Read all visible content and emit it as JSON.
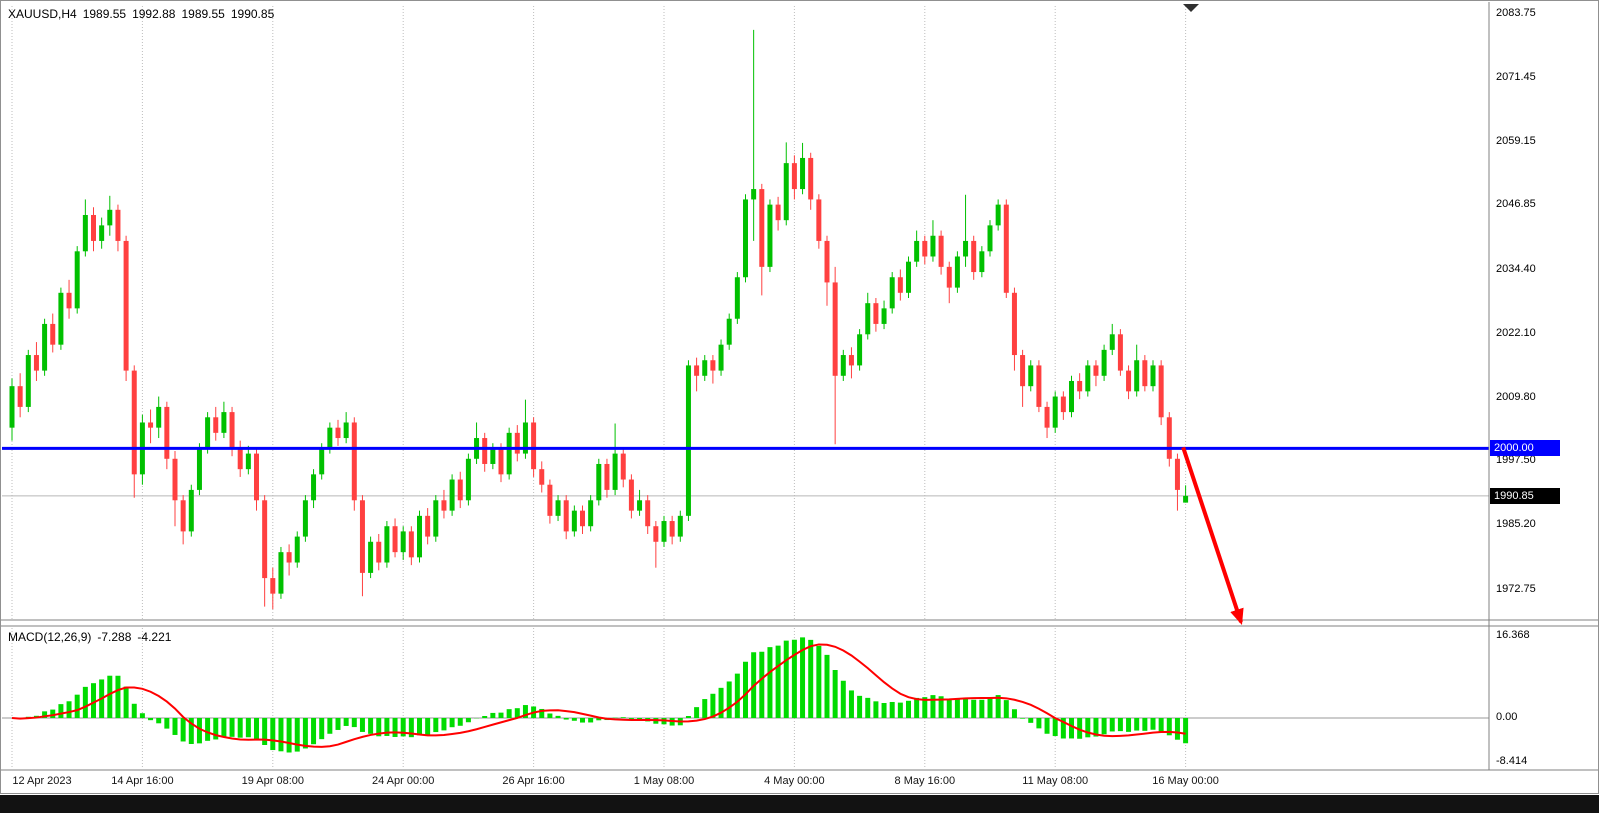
{
  "header": {
    "symbol_timeframe": "XAUUSD,H4",
    "open": "1989.55",
    "high": "1992.88",
    "low": "1989.55",
    "close": "1990.85"
  },
  "price_axis": {
    "labels": [
      "2083.75",
      "2071.45",
      "2059.15",
      "2046.85",
      "2034.40",
      "2022.10",
      "2009.80",
      "1997.50",
      "1985.20",
      "1972.75"
    ],
    "hline_badge": "2000.00",
    "bid_badge": "1990.85"
  },
  "time_axis": {
    "labels": [
      {
        "text": "12 Apr 2023",
        "index": 0
      },
      {
        "text": "14 Apr 16:00",
        "index": 16
      },
      {
        "text": "19 Apr 08:00",
        "index": 32
      },
      {
        "text": "24 Apr 00:00",
        "index": 48
      },
      {
        "text": "26 Apr 16:00",
        "index": 64
      },
      {
        "text": "1 May 08:00",
        "index": 80
      },
      {
        "text": "4 May 00:00",
        "index": 96
      },
      {
        "text": "8 May 16:00",
        "index": 112
      },
      {
        "text": "11 May 08:00",
        "index": 128
      },
      {
        "text": "16 May 00:00",
        "index": 144
      }
    ]
  },
  "macd_panel": {
    "label": "MACD(12,26,9)",
    "macd_value": "-7.288",
    "signal_value": "-4.221",
    "params": {
      "fast": 12,
      "slow": 26,
      "signal": 9
    },
    "axis_labels": [
      {
        "text": "16.368",
        "value": 16.368
      },
      {
        "text": "0.00",
        "value": 0
      },
      {
        "text": "-8.414",
        "value": -8.414
      }
    ]
  },
  "chart_data": {
    "type": "candlestick",
    "symbol": "XAUUSD",
    "timeframe": "H4",
    "title": "XAUUSD,H4 1989.55 1992.88 1989.55 1990.85",
    "price_axis_range": [
      1972.75,
      2083.75
    ],
    "horizontal_line": {
      "price": 2000.0,
      "label": "2000.00",
      "color": "#0000ff"
    },
    "bid_price": 1990.85,
    "macd_readout": {
      "macd": -7.288,
      "signal": -4.221
    },
    "macd_axis_range": [
      -8.414,
      16.368
    ],
    "candles_ohlc": [
      [
        2004,
        2013.5,
        2001.5,
        2012
      ],
      [
        2012,
        2014.5,
        2006,
        2008
      ],
      [
        2008,
        2019,
        2007,
        2018
      ],
      [
        2018,
        2020.5,
        2013,
        2015
      ],
      [
        2015,
        2025,
        2014,
        2024
      ],
      [
        2024,
        2026,
        2018.5,
        2020
      ],
      [
        2020,
        2031,
        2019,
        2030
      ],
      [
        2030,
        2032.5,
        2025,
        2027
      ],
      [
        2027,
        2039,
        2026,
        2038
      ],
      [
        2038,
        2048,
        2037,
        2045
      ],
      [
        2045,
        2046.5,
        2038,
        2040
      ],
      [
        2040,
        2044.5,
        2038.5,
        2043
      ],
      [
        2043,
        2048.7,
        2041,
        2046
      ],
      [
        2046,
        2047,
        2038,
        2040
      ],
      [
        2040,
        2041,
        2013,
        2015
      ],
      [
        2015,
        2016,
        1990.5,
        1995
      ],
      [
        1995,
        2006.5,
        1993,
        2005
      ],
      [
        2005,
        2007.5,
        2001,
        2004
      ],
      [
        2004,
        2010,
        2002,
        2008
      ],
      [
        2008,
        2009,
        1996,
        1998
      ],
      [
        1998,
        1999.5,
        1985,
        1990
      ],
      [
        1990,
        1991,
        1981.5,
        1984
      ],
      [
        1984,
        1993,
        1983,
        1992
      ],
      [
        1992,
        2001,
        1991,
        2000
      ],
      [
        2000,
        2007,
        1999,
        2006
      ],
      [
        2006,
        2008,
        2001.5,
        2003
      ],
      [
        2003,
        2009,
        2002,
        2007
      ],
      [
        2007,
        2008,
        1998.5,
        2000
      ],
      [
        2000,
        2001.5,
        1994.5,
        1996
      ],
      [
        1996,
        2000.5,
        1995,
        1999
      ],
      [
        1999,
        2000,
        1988,
        1990
      ],
      [
        1990,
        1991,
        1969.5,
        1975
      ],
      [
        1975,
        1977,
        1969,
        1972
      ],
      [
        1972,
        1981,
        1971,
        1980
      ],
      [
        1980,
        1981.5,
        1975.5,
        1978
      ],
      [
        1978,
        1984,
        1977,
        1983
      ],
      [
        1983,
        1991,
        1982,
        1990
      ],
      [
        1990,
        1996,
        1988.5,
        1995
      ],
      [
        1995,
        2001,
        1994,
        2000
      ],
      [
        2000,
        2005,
        1999,
        2004
      ],
      [
        2004,
        2005.5,
        2000.5,
        2002
      ],
      [
        2002,
        2007,
        2001,
        2005
      ],
      [
        2005,
        2006,
        1988,
        1990
      ],
      [
        1990,
        1991,
        1971.5,
        1976
      ],
      [
        1976,
        1983,
        1975,
        1982
      ],
      [
        1982,
        1983.5,
        1976.5,
        1978
      ],
      [
        1978,
        1986,
        1977,
        1985
      ],
      [
        1985,
        1986.5,
        1979,
        1980
      ],
      [
        1980,
        1985,
        1978.5,
        1984
      ],
      [
        1984,
        1985,
        1977.5,
        1979
      ],
      [
        1979,
        1988,
        1978,
        1987
      ],
      [
        1987,
        1988.5,
        1981.5,
        1983
      ],
      [
        1983,
        1991,
        1982,
        1990
      ],
      [
        1990,
        1992,
        1986.5,
        1988
      ],
      [
        1988,
        1995,
        1987,
        1994
      ],
      [
        1994,
        1995.5,
        1988.5,
        1990
      ],
      [
        1990,
        1999,
        1989,
        1998
      ],
      [
        1998,
        2005,
        1997,
        2002
      ],
      [
        2002,
        2003,
        1995.5,
        1997
      ],
      [
        1997,
        2001,
        1996,
        2000
      ],
      [
        2000,
        2001,
        1993.5,
        1995
      ],
      [
        1995,
        2004,
        1994,
        2003
      ],
      [
        2003,
        2004.5,
        1997.5,
        1999
      ],
      [
        1999,
        2009.4,
        1998,
        2005
      ],
      [
        2005,
        2006,
        1994.5,
        1996
      ],
      [
        1996,
        1997.5,
        1991.5,
        1993
      ],
      [
        1993,
        1994,
        1985.5,
        1987
      ],
      [
        1987,
        1991,
        1986,
        1990
      ],
      [
        1990,
        1991,
        1982.5,
        1984
      ],
      [
        1984,
        1989,
        1983,
        1988
      ],
      [
        1988,
        1989,
        1983.5,
        1985
      ],
      [
        1985,
        1991,
        1984,
        1990
      ],
      [
        1990,
        1998,
        1989,
        1997
      ],
      [
        1997,
        1998,
        1990.5,
        1992
      ],
      [
        1992,
        2004.8,
        1991,
        1999
      ],
      [
        1999,
        2000,
        1992.5,
        1994
      ],
      [
        1994,
        1995,
        1986.5,
        1988
      ],
      [
        1988,
        1992,
        1987,
        1990
      ],
      [
        1990,
        1991,
        1983.5,
        1985
      ],
      [
        1985,
        1986,
        1977,
        1982
      ],
      [
        1982,
        1987,
        1981,
        1986
      ],
      [
        1986,
        1987,
        1981.5,
        1983
      ],
      [
        1983,
        1988,
        1982,
        1987
      ],
      [
        1987,
        2017,
        1986,
        2016
      ],
      [
        2016,
        2017.5,
        2011,
        2014
      ],
      [
        2014,
        2018,
        2013,
        2017
      ],
      [
        2017,
        2018,
        2012.5,
        2015
      ],
      [
        2015,
        2021,
        2014,
        2020
      ],
      [
        2020,
        2026,
        2019,
        2025
      ],
      [
        2025,
        2034,
        2024,
        2033
      ],
      [
        2033,
        2049,
        2032,
        2048
      ],
      [
        2048,
        2080.7,
        2040,
        2050
      ],
      [
        2050,
        2051,
        2029.5,
        2035
      ],
      [
        2035,
        2048,
        2034,
        2047
      ],
      [
        2047,
        2048.5,
        2042,
        2044
      ],
      [
        2044,
        2059,
        2043,
        2055
      ],
      [
        2055,
        2056.5,
        2048,
        2050
      ],
      [
        2050,
        2058.9,
        2049,
        2056
      ],
      [
        2056,
        2057,
        2046,
        2048
      ],
      [
        2048,
        2049,
        2038.5,
        2040
      ],
      [
        2040,
        2041,
        2027.5,
        2032
      ],
      [
        2032,
        2035,
        2000.8,
        2014
      ],
      [
        2014,
        2019,
        2013,
        2018
      ],
      [
        2018,
        2019.5,
        2013.5,
        2016
      ],
      [
        2016,
        2023,
        2015,
        2022
      ],
      [
        2022,
        2030,
        2021,
        2028
      ],
      [
        2028,
        2029,
        2022.5,
        2024
      ],
      [
        2024,
        2028.5,
        2023,
        2027
      ],
      [
        2027,
        2034,
        2026,
        2033
      ],
      [
        2033,
        2034.5,
        2028.5,
        2030
      ],
      [
        2030,
        2037,
        2029,
        2036
      ],
      [
        2036,
        2042,
        2035,
        2040
      ],
      [
        2040,
        2041,
        2035.5,
        2037
      ],
      [
        2037,
        2044,
        2036,
        2041
      ],
      [
        2041,
        2042,
        2033.5,
        2035
      ],
      [
        2035,
        2036,
        2028,
        2031
      ],
      [
        2031,
        2038,
        2030,
        2037
      ],
      [
        2037,
        2048.9,
        2035,
        2040
      ],
      [
        2040,
        2041,
        2032.5,
        2034
      ],
      [
        2034,
        2039,
        2033,
        2038
      ],
      [
        2038,
        2044,
        2037,
        2043
      ],
      [
        2043,
        2048,
        2042,
        2047
      ],
      [
        2047,
        2048,
        2029,
        2030
      ],
      [
        2030,
        2031,
        2015,
        2018
      ],
      [
        2018,
        2019,
        2008,
        2012
      ],
      [
        2012,
        2017,
        2011,
        2016
      ],
      [
        2016,
        2017,
        2007,
        2008
      ],
      [
        2008,
        2009,
        2002,
        2004
      ],
      [
        2004,
        2011,
        2003,
        2010
      ],
      [
        2010,
        2011,
        2005.5,
        2007
      ],
      [
        2007,
        2014,
        2006,
        2013
      ],
      [
        2013,
        2014.5,
        2009.5,
        2011
      ],
      [
        2011,
        2017,
        2010,
        2016
      ],
      [
        2016,
        2017,
        2012,
        2014
      ],
      [
        2014,
        2020,
        2013,
        2019
      ],
      [
        2019,
        2024,
        2018,
        2022
      ],
      [
        2022,
        2023,
        2014,
        2015
      ],
      [
        2015,
        2016,
        2009.5,
        2011
      ],
      [
        2011,
        2020,
        2010,
        2017
      ],
      [
        2017,
        2018,
        2011,
        2012
      ],
      [
        2012,
        2017,
        2011,
        2016
      ],
      [
        2016,
        2017,
        2004.5,
        2006
      ],
      [
        2006,
        2007,
        1996.5,
        1998
      ],
      [
        1998,
        1999,
        1988,
        1992
      ],
      [
        1989.55,
        1992.88,
        1989.55,
        1990.85
      ]
    ]
  },
  "annotations": {
    "arrow": {
      "color": "#ff0000",
      "from": {
        "bar_index": 143.7,
        "price": 2000.2
      },
      "to": {
        "bar_index": 150.8,
        "price": 1966.5
      }
    }
  },
  "colors": {
    "bull": "#00C000",
    "bear": "#FF4040",
    "macd_histogram": "#00DB00",
    "macd_signal": "#FF0000",
    "hline": "#0000FF",
    "grid": "#BDBDBD",
    "bid_line": "#B8B8B8",
    "separator": "#808080",
    "badge_hline_bg": "#0000FF",
    "badge_bid_bg": "#000000"
  }
}
